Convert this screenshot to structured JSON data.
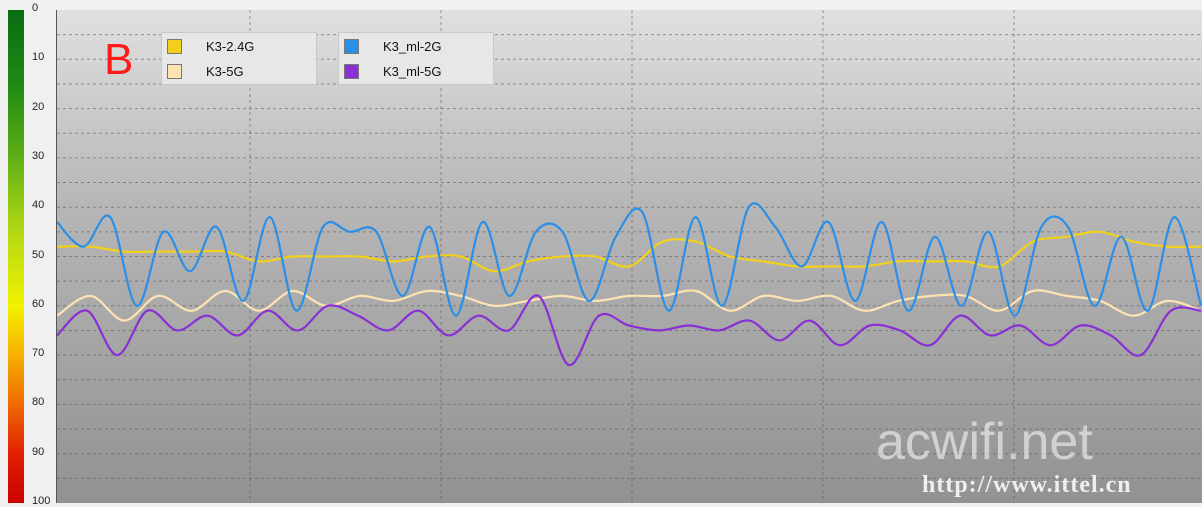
{
  "chart_data": {
    "type": "line",
    "ylim": [
      0,
      100
    ],
    "y_inverted": true,
    "yticks": [
      "0",
      "10",
      "20",
      "30",
      "40",
      "50",
      "60",
      "70",
      "80",
      "90",
      "100"
    ],
    "grid": true,
    "legend_placement": "top-left",
    "panel_label": "B",
    "series": [
      {
        "name": "K3-2.4G",
        "color": "#f2d11c",
        "values": [
          48,
          48,
          49,
          49,
          49,
          49,
          51,
          50,
          50,
          50,
          51,
          50,
          50,
          53,
          51,
          50,
          50,
          52,
          47,
          47,
          50,
          51,
          52,
          52,
          52,
          51,
          51,
          51,
          52,
          47,
          46,
          45,
          47,
          48,
          48
        ]
      },
      {
        "name": "K3-5G",
        "color": "#fde3b2",
        "values": [
          62,
          58,
          63,
          58,
          61,
          57,
          61,
          57,
          60,
          58,
          59,
          57,
          58,
          60,
          59,
          58,
          59,
          58,
          58,
          57,
          61,
          58,
          59,
          58,
          61,
          59,
          58,
          58,
          61,
          57,
          58,
          59,
          62,
          59,
          61
        ]
      },
      {
        "name": "K3_ml-2G",
        "color": "#2b8fe8",
        "values": [
          43,
          48,
          42,
          60,
          45,
          53,
          44,
          59,
          42,
          61,
          44,
          45,
          45,
          58,
          44,
          62,
          43,
          58,
          45,
          45,
          59,
          46,
          41,
          61,
          42,
          60,
          40,
          44,
          52,
          43,
          59,
          43,
          61,
          46,
          60,
          45,
          62,
          44,
          44,
          60,
          46,
          61,
          42,
          60
        ]
      },
      {
        "name": "K3_ml-5G",
        "color": "#8a2fd6",
        "values": [
          66,
          61,
          70,
          61,
          65,
          62,
          66,
          61,
          65,
          60,
          62,
          65,
          61,
          66,
          62,
          65,
          58,
          72,
          62,
          64,
          65,
          64,
          65,
          63,
          67,
          63,
          68,
          64,
          65,
          68,
          62,
          66,
          64,
          68,
          64,
          66,
          70,
          61,
          61
        ]
      }
    ]
  },
  "legend": [
    {
      "label": "K3-2.4G",
      "color": "#f2d11c"
    },
    {
      "label": "K3-5G",
      "color": "#fde3b2"
    },
    {
      "label": "K3_ml-2G",
      "color": "#2b8fe8"
    },
    {
      "label": "K3_ml-5G",
      "color": "#8a2fd6"
    }
  ],
  "watermark": {
    "main": "acwifi.net",
    "url": "http://www.ittel.cn"
  }
}
